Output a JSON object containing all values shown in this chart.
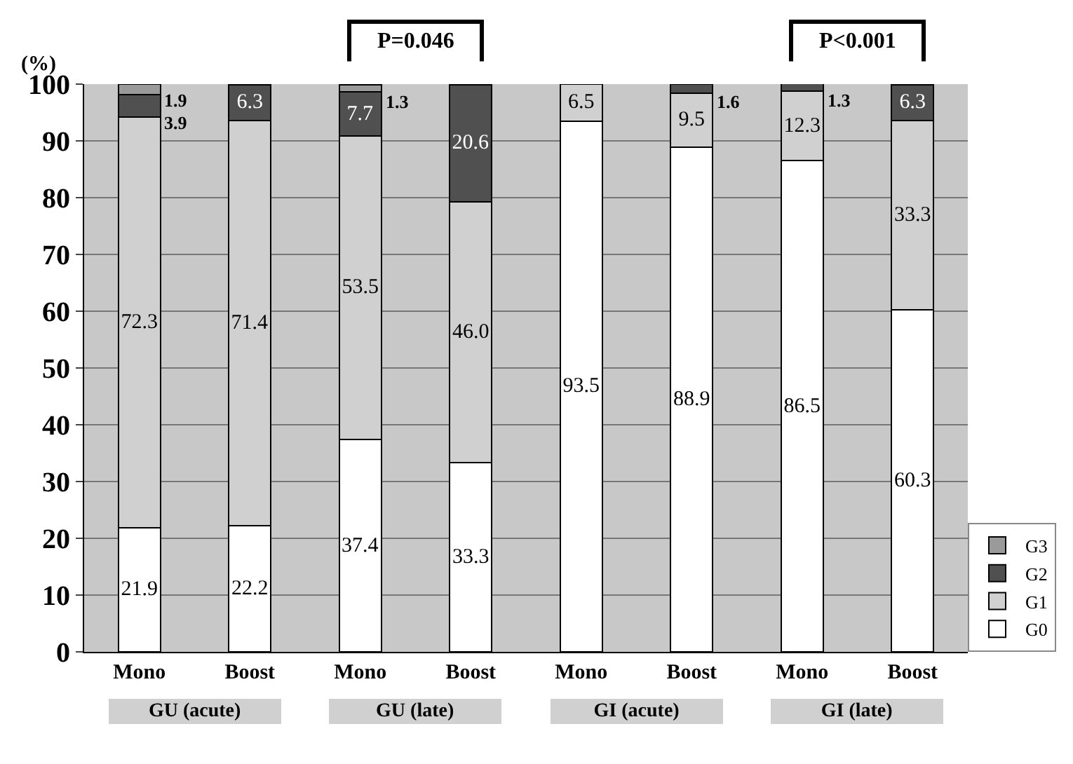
{
  "chart_data": {
    "type": "bar",
    "stacked": true,
    "ylabel": "(%)",
    "categories": [
      "Mono",
      "Boost",
      "Mono",
      "Boost",
      "Mono",
      "Boost",
      "Mono",
      "Boost"
    ],
    "series": [
      {
        "name": "G0",
        "color": "#ffffff",
        "values": [
          21.9,
          22.2,
          37.4,
          33.3,
          93.5,
          88.9,
          86.5,
          60.3
        ],
        "value_labels": [
          "21.9",
          "22.2",
          "37.4",
          "33.3",
          "93.5",
          "88.9",
          "86.5",
          "60.3"
        ]
      },
      {
        "name": "G1",
        "color": "#d0d0d0",
        "values": [
          72.3,
          71.4,
          53.5,
          46.0,
          6.5,
          9.5,
          12.3,
          33.3
        ],
        "value_labels": [
          "72.3",
          "71.4",
          "53.5",
          "46.0",
          "6.5",
          "9.5",
          "12.3",
          "33.3"
        ]
      },
      {
        "name": "G2",
        "color": "#505050",
        "values": [
          3.9,
          6.3,
          7.7,
          20.6,
          0,
          1.6,
          1.3,
          6.3
        ],
        "value_labels": [
          "3.9",
          "6.3",
          "7.7",
          "20.6",
          null,
          "1.6",
          "1.3",
          "6.3"
        ]
      },
      {
        "name": "G3",
        "color": "#9a9a9a",
        "values": [
          1.9,
          0,
          1.3,
          0,
          0,
          0,
          0,
          0
        ],
        "value_labels": [
          "1.9",
          null,
          "1.3",
          null,
          null,
          null,
          null,
          null
        ]
      }
    ],
    "ylim": [
      0,
      100
    ],
    "yticks": [
      0,
      10,
      20,
      30,
      40,
      50,
      60,
      70,
      80,
      90,
      100
    ],
    "grid": "y",
    "legend": "bottom right",
    "annotations": [
      "GU (acute)",
      "GU (late)",
      "GI (acute)",
      "GI (late)",
      "P=0.046",
      "P<0.001"
    ]
  }
}
